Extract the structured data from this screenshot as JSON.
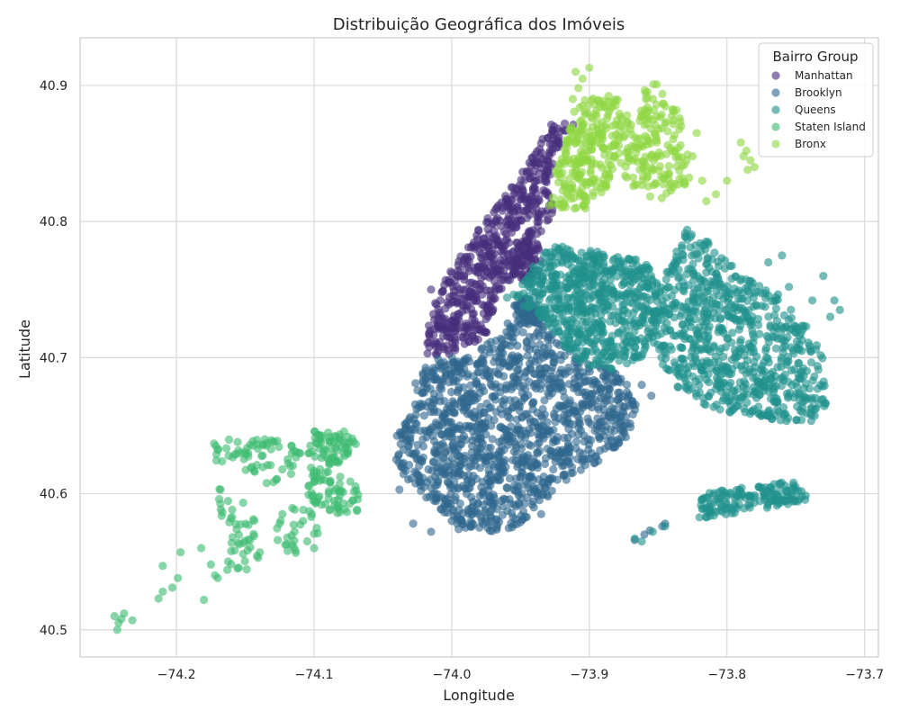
{
  "chart_data": {
    "type": "scatter",
    "title": "Distribuição Geográfica dos Imóveis",
    "xlabel": "Longitude",
    "ylabel": "Latitude",
    "xlim": [
      -74.27,
      -73.69
    ],
    "ylim": [
      40.48,
      40.935
    ],
    "x_ticks": [
      -74.2,
      -74.1,
      -74.0,
      -73.9,
      -73.8,
      -73.7
    ],
    "x_tick_labels": [
      "−74.2",
      "−74.1",
      "−74.0",
      "−73.9",
      "−73.8",
      "−73.7"
    ],
    "y_ticks": [
      40.5,
      40.6,
      40.7,
      40.8,
      40.9
    ],
    "y_tick_labels": [
      "40.5",
      "40.6",
      "40.7",
      "40.8",
      "40.9"
    ],
    "grid": true,
    "legend": {
      "title": "Bairro Group",
      "placement": "top-right"
    },
    "series": [
      {
        "name": "Manhattan",
        "color": "#472f7d",
        "regions": [
          {
            "poly": [
              [
                -74.018,
                40.703
              ],
              [
                -74.008,
                40.7
              ],
              [
                -73.995,
                40.706
              ],
              [
                -73.978,
                40.712
              ],
              [
                -73.972,
                40.722
              ],
              [
                -73.968,
                40.745
              ],
              [
                -73.95,
                40.765
              ],
              [
                -73.935,
                40.79
              ],
              [
                -73.925,
                40.805
              ],
              [
                -73.93,
                40.83
              ],
              [
                -73.92,
                40.86
              ],
              [
                -73.908,
                40.873
              ],
              [
                -73.928,
                40.872
              ],
              [
                -73.94,
                40.852
              ],
              [
                -73.962,
                40.818
              ],
              [
                -73.985,
                40.79
              ],
              [
                -74.002,
                40.762
              ],
              [
                -74.015,
                40.738
              ],
              [
                -74.018,
                40.715
              ]
            ],
            "n": 600
          },
          {
            "poly": [
              [
                -73.958,
                40.76
              ],
              [
                -73.945,
                40.755
              ],
              [
                -73.935,
                40.765
              ],
              [
                -73.936,
                40.785
              ],
              [
                -73.948,
                40.782
              ]
            ],
            "n": 60
          }
        ],
        "points": [
          [
            -74.015,
            40.75
          ],
          [
            -74.012,
            40.74
          ],
          [
            -73.998,
            40.725
          ],
          [
            -73.925,
            40.86
          ]
        ]
      },
      {
        "name": "Brooklyn",
        "color": "#31688e",
        "regions": [
          {
            "poly": [
              [
                -74.025,
                40.69
              ],
              [
                -74.01,
                40.7
              ],
              [
                -73.985,
                40.703
              ],
              [
                -73.975,
                40.712
              ],
              [
                -73.962,
                40.722
              ],
              [
                -73.952,
                40.737
              ],
              [
                -73.942,
                40.732
              ],
              [
                -73.928,
                40.718
              ],
              [
                -73.908,
                40.7
              ],
              [
                -73.88,
                40.69
              ],
              [
                -73.865,
                40.67
              ],
              [
                -73.87,
                40.645
              ],
              [
                -73.89,
                40.625
              ],
              [
                -73.905,
                40.618
              ],
              [
                -73.935,
                40.595
              ],
              [
                -73.95,
                40.575
              ],
              [
                -73.975,
                40.572
              ],
              [
                -74.0,
                40.578
              ],
              [
                -74.025,
                40.603
              ],
              [
                -74.04,
                40.618
              ],
              [
                -74.042,
                40.64
              ],
              [
                -74.03,
                40.66
              ]
            ],
            "n": 1300
          },
          {
            "poly": [
              [
                -73.945,
                40.745
              ],
              [
                -73.955,
                40.738
              ],
              [
                -73.948,
                40.728
              ],
              [
                -73.938,
                40.722
              ],
              [
                -73.935,
                40.735
              ]
            ],
            "n": 60
          }
        ],
        "points": [
          [
            -74.038,
            40.603
          ],
          [
            -74.028,
            40.578
          ],
          [
            -74.015,
            40.572
          ],
          [
            -73.995,
            40.574
          ],
          [
            -73.875,
            40.65
          ],
          [
            -73.862,
            40.68
          ],
          [
            -73.855,
            40.672
          ],
          [
            -73.867,
            40.566
          ],
          [
            -73.86,
            40.57
          ],
          [
            -73.856,
            40.573
          ],
          [
            -73.847,
            40.576
          ],
          [
            -73.845,
            40.578
          ],
          [
            -73.935,
            40.585
          ],
          [
            -73.93,
            40.598
          ],
          [
            -74.0,
            40.58
          ],
          [
            -73.99,
            40.575
          ]
        ]
      },
      {
        "name": "Queens",
        "color": "#21918c",
        "regions": [
          {
            "poly": [
              [
                -73.962,
                40.742
              ],
              [
                -73.955,
                40.75
              ],
              [
                -73.94,
                40.77
              ],
              [
                -73.925,
                40.785
              ],
              [
                -73.905,
                40.78
              ],
              [
                -73.88,
                40.775
              ],
              [
                -73.855,
                40.77
              ],
              [
                -73.85,
                40.755
              ],
              [
                -73.845,
                40.735
              ],
              [
                -73.85,
                40.715
              ],
              [
                -73.86,
                40.7
              ],
              [
                -73.88,
                40.69
              ],
              [
                -73.905,
                40.695
              ],
              [
                -73.92,
                40.71
              ],
              [
                -73.935,
                40.728
              ],
              [
                -73.95,
                40.74
              ]
            ],
            "n": 650
          },
          {
            "poly": [
              [
                -73.86,
                40.72
              ],
              [
                -73.845,
                40.69
              ],
              [
                -73.83,
                40.67
              ],
              [
                -73.8,
                40.66
              ],
              [
                -73.77,
                40.655
              ],
              [
                -73.74,
                40.65
              ],
              [
                -73.728,
                40.665
              ],
              [
                -73.73,
                40.7
              ],
              [
                -73.74,
                40.72
              ],
              [
                -73.76,
                40.745
              ],
              [
                -73.79,
                40.76
              ],
              [
                -73.815,
                40.79
              ],
              [
                -73.832,
                40.795
              ],
              [
                -73.842,
                40.77
              ],
              [
                -73.85,
                40.745
              ]
            ],
            "n": 750
          },
          {
            "poly": [
              [
                -73.82,
                40.6
              ],
              [
                -73.8,
                40.603
              ],
              [
                -73.77,
                40.607
              ],
              [
                -73.752,
                40.61
              ],
              [
                -73.738,
                40.596
              ],
              [
                -73.765,
                40.59
              ],
              [
                -73.795,
                40.585
              ],
              [
                -73.82,
                40.582
              ]
            ],
            "n": 150
          }
        ],
        "points": [
          [
            -73.867,
            40.567
          ],
          [
            -73.862,
            40.565
          ],
          [
            -73.854,
            40.572
          ],
          [
            -73.845,
            40.576
          ],
          [
            -73.738,
            40.742
          ],
          [
            -73.722,
            40.742
          ],
          [
            -73.718,
            40.735
          ],
          [
            -73.725,
            40.73
          ],
          [
            -73.755,
            40.752
          ],
          [
            -73.76,
            40.775
          ],
          [
            -73.77,
            40.77
          ],
          [
            -73.73,
            40.76
          ]
        ]
      },
      {
        "name": "Staten Island",
        "color": "#3fbc73",
        "regions": [
          {
            "poly": [
              [
                -74.1,
                40.646
              ],
              [
                -74.075,
                40.646
              ],
              [
                -74.068,
                40.635
              ],
              [
                -74.075,
                40.625
              ],
              [
                -74.09,
                40.62
              ],
              [
                -74.105,
                40.63
              ]
            ],
            "n": 70
          },
          {
            "poly": [
              [
                -74.105,
                40.62
              ],
              [
                -74.08,
                40.615
              ],
              [
                -74.063,
                40.6
              ],
              [
                -74.068,
                40.585
              ],
              [
                -74.085,
                40.585
              ],
              [
                -74.105,
                40.595
              ]
            ],
            "n": 70
          },
          {
            "poly": [
              [
                -74.15,
                40.64
              ],
              [
                -74.12,
                40.64
              ],
              [
                -74.105,
                40.63
              ],
              [
                -74.115,
                40.615
              ],
              [
                -74.135,
                40.605
              ],
              [
                -74.15,
                40.615
              ]
            ],
            "n": 50
          },
          {
            "poly": [
              [
                -74.175,
                40.64
              ],
              [
                -74.15,
                40.64
              ],
              [
                -74.15,
                40.625
              ],
              [
                -74.17,
                40.62
              ]
            ],
            "n": 18
          },
          {
            "poly": [
              [
                -74.17,
                40.605
              ],
              [
                -74.15,
                40.6
              ],
              [
                -74.14,
                40.57
              ],
              [
                -74.155,
                40.55
              ],
              [
                -74.165,
                40.56
              ]
            ],
            "n": 30
          },
          {
            "poly": [
              [
                -74.13,
                40.59
              ],
              [
                -74.1,
                40.59
              ],
              [
                -74.095,
                40.565
              ],
              [
                -74.115,
                40.555
              ],
              [
                -74.13,
                40.565
              ]
            ],
            "n": 25
          },
          {
            "poly": [
              [
                -74.16,
                40.565
              ],
              [
                -74.135,
                40.56
              ],
              [
                -74.14,
                40.54
              ],
              [
                -74.165,
                40.54
              ]
            ],
            "n": 15
          }
        ],
        "points": [
          [
            -74.245,
            40.51
          ],
          [
            -74.242,
            40.505
          ],
          [
            -74.24,
            40.508
          ],
          [
            -74.238,
            40.512
          ],
          [
            -74.243,
            40.5
          ],
          [
            -74.232,
            40.507
          ],
          [
            -74.213,
            40.523
          ],
          [
            -74.21,
            40.528
          ],
          [
            -74.203,
            40.531
          ],
          [
            -74.199,
            40.538
          ],
          [
            -74.197,
            40.557
          ],
          [
            -74.21,
            40.547
          ],
          [
            -74.18,
            40.522
          ],
          [
            -74.182,
            40.56
          ],
          [
            -74.175,
            40.548
          ],
          [
            -74.172,
            40.54
          ],
          [
            -74.17,
            40.538
          ],
          [
            -74.168,
            40.603
          ],
          [
            -74.123,
            40.585
          ],
          [
            -74.125,
            40.578
          ],
          [
            -74.108,
            40.58
          ],
          [
            -74.105,
            40.565
          ],
          [
            -74.1,
            40.56
          ]
        ]
      },
      {
        "name": "Bronx",
        "color": "#8fd744",
        "regions": [
          {
            "poly": [
              [
                -73.93,
                40.812
              ],
              [
                -73.925,
                40.835
              ],
              [
                -73.918,
                40.86
              ],
              [
                -73.915,
                40.875
              ],
              [
                -73.905,
                40.89
              ],
              [
                -73.89,
                40.895
              ],
              [
                -73.875,
                40.89
              ],
              [
                -73.87,
                40.87
              ],
              [
                -73.88,
                40.85
              ],
              [
                -73.885,
                40.828
              ],
              [
                -73.895,
                40.812
              ],
              [
                -73.91,
                40.805
              ]
            ],
            "n": 260
          },
          {
            "poly": [
              [
                -73.88,
                40.85
              ],
              [
                -73.87,
                40.87
              ],
              [
                -73.86,
                40.9
              ],
              [
                -73.845,
                40.903
              ],
              [
                -73.835,
                40.88
              ],
              [
                -73.828,
                40.85
              ],
              [
                -73.825,
                40.825
              ],
              [
                -73.84,
                40.815
              ],
              [
                -73.86,
                40.818
              ],
              [
                -73.875,
                40.83
              ]
            ],
            "n": 170
          }
        ],
        "points": [
          [
            -73.91,
            40.91
          ],
          [
            -73.905,
            40.905
          ],
          [
            -73.9,
            40.913
          ],
          [
            -73.908,
            40.898
          ],
          [
            -73.912,
            40.89
          ],
          [
            -73.905,
            40.885
          ],
          [
            -73.825,
            40.848
          ],
          [
            -73.822,
            40.865
          ],
          [
            -73.815,
            40.815
          ],
          [
            -73.79,
            40.858
          ],
          [
            -73.786,
            40.852
          ],
          [
            -73.783,
            40.845
          ],
          [
            -73.78,
            40.84
          ],
          [
            -73.788,
            40.848
          ],
          [
            -73.785,
            40.838
          ],
          [
            -73.8,
            40.83
          ],
          [
            -73.808,
            40.82
          ],
          [
            -73.818,
            40.83
          ]
        ]
      }
    ]
  }
}
